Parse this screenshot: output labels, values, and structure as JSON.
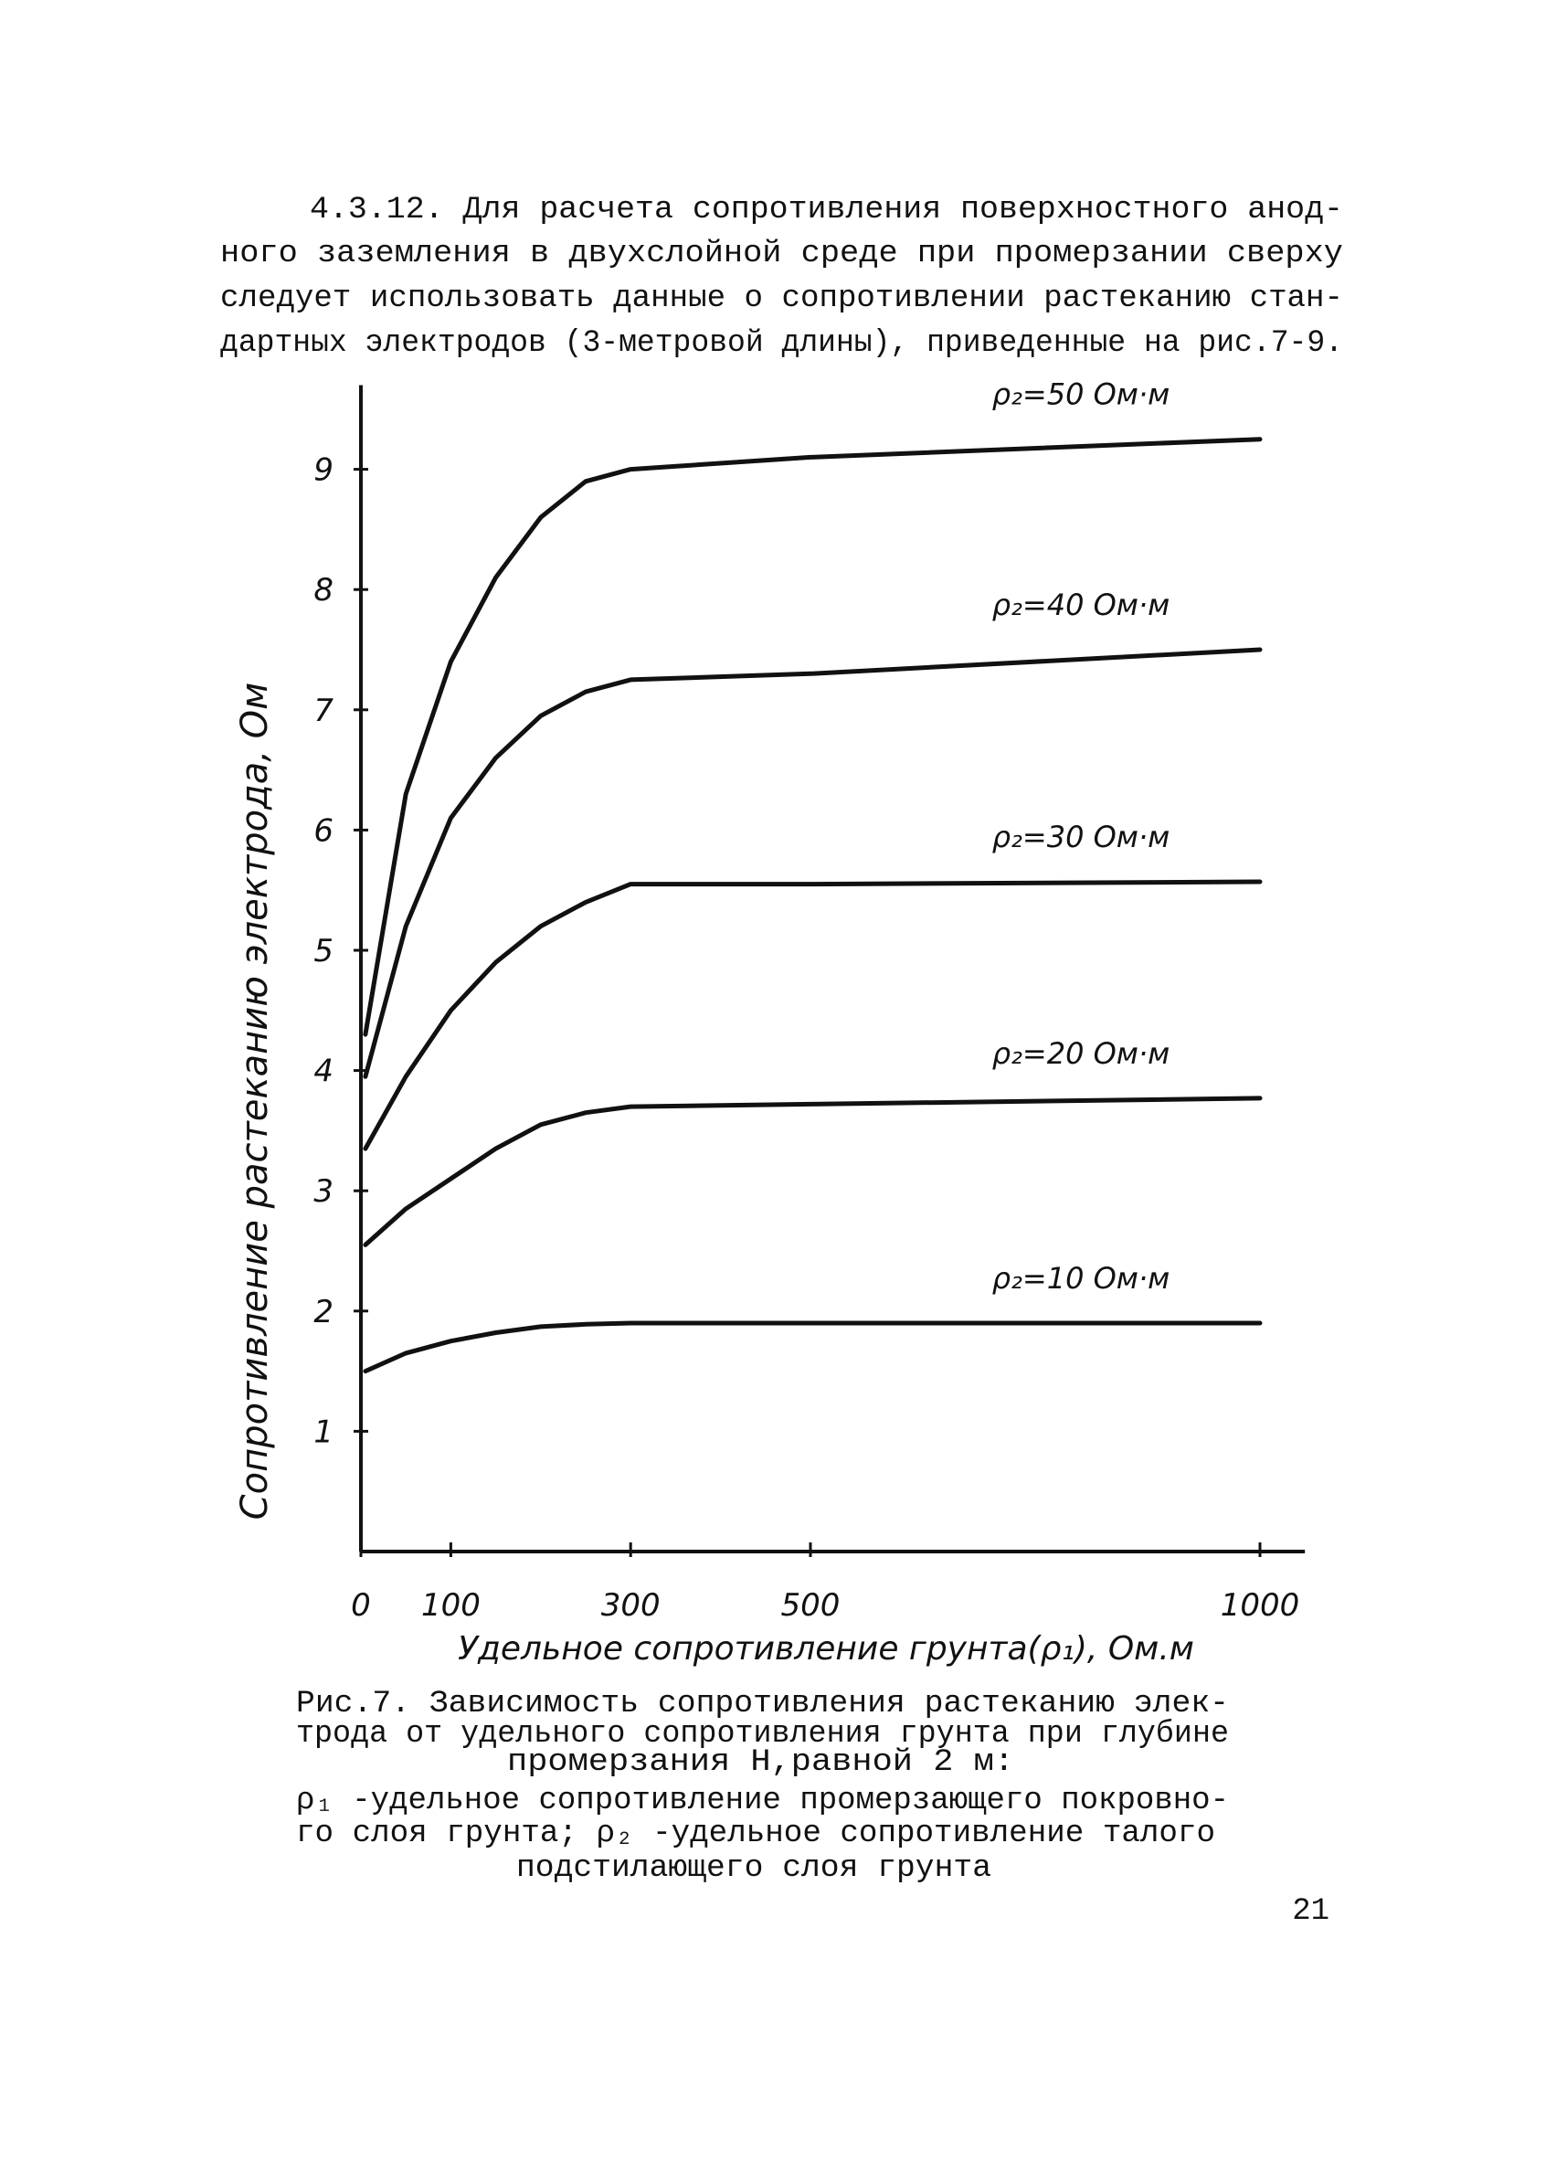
{
  "paragraph": [
    "4.3.12. Для расчета сопротивления поверхностного анод-",
    "ного заземления в двухслойной среде при промерзании сверху",
    "следует использовать данные о сопротивлении растеканию стан-",
    "дартных электродов (3-метровой длины), приведенные на рис.7-9."
  ],
  "chart_data": {
    "type": "line",
    "x_label": "Удельное сопротивление грунта(ρ₁), Ом.м",
    "y_label": "Сопротивление растеканию электрода, Ом",
    "xlim": [
      0,
      1050
    ],
    "ylim": [
      0,
      9.7
    ],
    "xticks": [
      0,
      100,
      300,
      500,
      1000
    ],
    "yticks": [
      1,
      2,
      3,
      4,
      5,
      6,
      7,
      8,
      9
    ],
    "color": "#111111",
    "series": [
      {
        "name": "ρ₂=50 Ом·м",
        "color": "#111111",
        "x": [
          5,
          50,
          100,
          150,
          200,
          250,
          300,
          500,
          1000
        ],
        "values": [
          4.3,
          6.3,
          7.4,
          8.1,
          8.6,
          8.9,
          9.0,
          9.1,
          9.25
        ]
      },
      {
        "name": "ρ₂=40 Ом·м",
        "color": "#111111",
        "x": [
          5,
          50,
          100,
          150,
          200,
          250,
          300,
          500,
          1000
        ],
        "values": [
          3.95,
          5.2,
          6.1,
          6.6,
          6.95,
          7.15,
          7.25,
          7.3,
          7.5
        ]
      },
      {
        "name": "ρ₂=30 Ом·м",
        "color": "#111111",
        "x": [
          5,
          50,
          100,
          150,
          200,
          250,
          300,
          500,
          1000
        ],
        "values": [
          3.35,
          3.95,
          4.5,
          4.9,
          5.2,
          5.4,
          5.55,
          5.55,
          5.57
        ]
      },
      {
        "name": "ρ₂=20 Ом·м",
        "color": "#111111",
        "x": [
          5,
          50,
          100,
          150,
          200,
          250,
          300,
          500,
          1000
        ],
        "values": [
          2.55,
          2.85,
          3.1,
          3.35,
          3.55,
          3.65,
          3.7,
          3.72,
          3.77
        ]
      },
      {
        "name": "ρ₂=10 Ом·м",
        "color": "#111111",
        "x": [
          5,
          50,
          100,
          150,
          200,
          250,
          300,
          500,
          1000
        ],
        "values": [
          1.5,
          1.65,
          1.75,
          1.82,
          1.87,
          1.89,
          1.9,
          1.9,
          1.9
        ]
      }
    ]
  },
  "caption": [
    "Рис.7.  Зависимость сопротивления растеканию элек-",
    "трода от удельного сопротивления грунта при глубине",
    "промерзания Н,равной 2 м:",
    "ρ₁ -удельное сопротивление промерзающего покровно-",
    "го слоя грунта; ρ₂ -удельное сопротивление талого",
    "подстилающего слоя грунта"
  ],
  "page_number": "21"
}
